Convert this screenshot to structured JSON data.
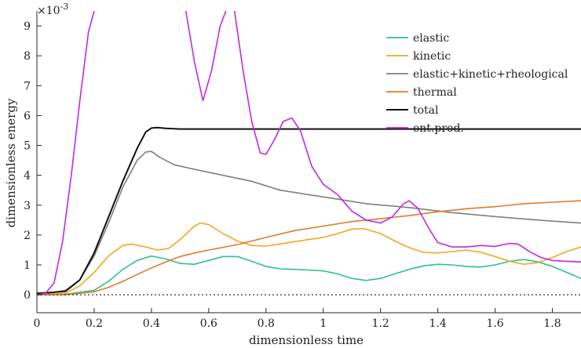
{
  "chart_data": {
    "type": "line",
    "xlabel": "dimensionless time",
    "ylabel": "dimensionless energy",
    "y_multiplier": "×10",
    "y_multiplier_exp": "-3",
    "xlim": [
      0,
      1.9
    ],
    "ylim": [
      -0.6,
      9.5
    ],
    "x_ticks": [
      0,
      0.2,
      0.4,
      0.6,
      0.8,
      1,
      1.2,
      1.4,
      1.6,
      1.8
    ],
    "x_tick_labels": [
      "0",
      "0.2",
      "0.4",
      "0.6",
      "0.8",
      "1",
      "1.2",
      "1.4",
      "1.6",
      "1.8"
    ],
    "y_ticks": [
      0,
      1,
      2,
      3,
      4,
      5,
      6,
      7,
      8,
      9
    ],
    "y_tick_labels": [
      "0",
      "1",
      "2",
      "3",
      "4",
      "5",
      "6",
      "7",
      "8",
      "9"
    ],
    "grid": false,
    "legend_position": "top-right",
    "zero_line": "dotted",
    "series": [
      {
        "name": "elastic",
        "color": "#2ec08f",
        "points": [
          [
            0,
            0
          ],
          [
            0.1,
            0.02
          ],
          [
            0.2,
            0.15
          ],
          [
            0.25,
            0.45
          ],
          [
            0.3,
            0.85
          ],
          [
            0.35,
            1.15
          ],
          [
            0.4,
            1.3
          ],
          [
            0.45,
            1.2
          ],
          [
            0.5,
            1.05
          ],
          [
            0.55,
            1.02
          ],
          [
            0.6,
            1.15
          ],
          [
            0.65,
            1.28
          ],
          [
            0.7,
            1.28
          ],
          [
            0.75,
            1.12
          ],
          [
            0.8,
            0.95
          ],
          [
            0.85,
            0.87
          ],
          [
            0.9,
            0.85
          ],
          [
            0.95,
            0.83
          ],
          [
            1.0,
            0.8
          ],
          [
            1.05,
            0.7
          ],
          [
            1.1,
            0.55
          ],
          [
            1.15,
            0.48
          ],
          [
            1.2,
            0.55
          ],
          [
            1.25,
            0.7
          ],
          [
            1.3,
            0.85
          ],
          [
            1.35,
            0.97
          ],
          [
            1.4,
            1.02
          ],
          [
            1.45,
            1.0
          ],
          [
            1.5,
            0.95
          ],
          [
            1.55,
            0.93
          ],
          [
            1.6,
            1.0
          ],
          [
            1.65,
            1.12
          ],
          [
            1.7,
            1.18
          ],
          [
            1.75,
            1.1
          ],
          [
            1.8,
            0.95
          ],
          [
            1.85,
            0.75
          ],
          [
            1.9,
            0.55
          ]
        ]
      },
      {
        "name": "kinetic",
        "color": "#f5a623",
        "points": [
          [
            0,
            0
          ],
          [
            0.1,
            0.05
          ],
          [
            0.15,
            0.3
          ],
          [
            0.2,
            0.75
          ],
          [
            0.25,
            1.3
          ],
          [
            0.3,
            1.65
          ],
          [
            0.33,
            1.7
          ],
          [
            0.38,
            1.6
          ],
          [
            0.42,
            1.5
          ],
          [
            0.46,
            1.55
          ],
          [
            0.5,
            1.85
          ],
          [
            0.55,
            2.3
          ],
          [
            0.57,
            2.4
          ],
          [
            0.6,
            2.35
          ],
          [
            0.65,
            2.05
          ],
          [
            0.7,
            1.8
          ],
          [
            0.75,
            1.65
          ],
          [
            0.8,
            1.63
          ],
          [
            0.85,
            1.7
          ],
          [
            0.9,
            1.78
          ],
          [
            0.95,
            1.85
          ],
          [
            1.0,
            1.92
          ],
          [
            1.05,
            2.05
          ],
          [
            1.1,
            2.2
          ],
          [
            1.14,
            2.22
          ],
          [
            1.2,
            2.05
          ],
          [
            1.25,
            1.8
          ],
          [
            1.3,
            1.58
          ],
          [
            1.35,
            1.42
          ],
          [
            1.4,
            1.4
          ],
          [
            1.45,
            1.45
          ],
          [
            1.5,
            1.5
          ],
          [
            1.55,
            1.42
          ],
          [
            1.6,
            1.28
          ],
          [
            1.65,
            1.12
          ],
          [
            1.7,
            1.02
          ],
          [
            1.75,
            1.08
          ],
          [
            1.8,
            1.25
          ],
          [
            1.85,
            1.45
          ],
          [
            1.9,
            1.6
          ]
        ]
      },
      {
        "name": "elastic+kinetic+rheological",
        "color": "#7f7f7f",
        "points": [
          [
            0,
            0.05
          ],
          [
            0.05,
            0.07
          ],
          [
            0.1,
            0.15
          ],
          [
            0.15,
            0.5
          ],
          [
            0.2,
            1.3
          ],
          [
            0.25,
            2.4
          ],
          [
            0.3,
            3.6
          ],
          [
            0.35,
            4.5
          ],
          [
            0.38,
            4.78
          ],
          [
            0.4,
            4.8
          ],
          [
            0.43,
            4.6
          ],
          [
            0.48,
            4.35
          ],
          [
            0.55,
            4.2
          ],
          [
            0.65,
            4.0
          ],
          [
            0.75,
            3.8
          ],
          [
            0.85,
            3.5
          ],
          [
            0.95,
            3.35
          ],
          [
            1.05,
            3.2
          ],
          [
            1.15,
            3.05
          ],
          [
            1.3,
            2.92
          ],
          [
            1.45,
            2.75
          ],
          [
            1.6,
            2.62
          ],
          [
            1.75,
            2.5
          ],
          [
            1.9,
            2.4
          ]
        ]
      },
      {
        "name": "thermal",
        "color": "#e07b2a",
        "points": [
          [
            0,
            0
          ],
          [
            0.1,
            0.0
          ],
          [
            0.2,
            0.1
          ],
          [
            0.25,
            0.25
          ],
          [
            0.3,
            0.45
          ],
          [
            0.35,
            0.68
          ],
          [
            0.4,
            0.9
          ],
          [
            0.45,
            1.1
          ],
          [
            0.5,
            1.28
          ],
          [
            0.55,
            1.4
          ],
          [
            0.6,
            1.5
          ],
          [
            0.7,
            1.68
          ],
          [
            0.8,
            1.92
          ],
          [
            0.9,
            2.15
          ],
          [
            1.0,
            2.3
          ],
          [
            1.1,
            2.45
          ],
          [
            1.2,
            2.55
          ],
          [
            1.3,
            2.65
          ],
          [
            1.4,
            2.78
          ],
          [
            1.5,
            2.88
          ],
          [
            1.6,
            2.95
          ],
          [
            1.7,
            3.05
          ],
          [
            1.8,
            3.1
          ],
          [
            1.9,
            3.15
          ]
        ]
      },
      {
        "name": "total",
        "color": "#111111",
        "points": [
          [
            0,
            0.05
          ],
          [
            0.05,
            0.08
          ],
          [
            0.1,
            0.12
          ],
          [
            0.15,
            0.5
          ],
          [
            0.2,
            1.4
          ],
          [
            0.25,
            2.6
          ],
          [
            0.3,
            3.8
          ],
          [
            0.35,
            4.9
          ],
          [
            0.38,
            5.45
          ],
          [
            0.4,
            5.58
          ],
          [
            0.42,
            5.6
          ],
          [
            0.45,
            5.57
          ],
          [
            0.5,
            5.55
          ],
          [
            0.6,
            5.55
          ],
          [
            0.8,
            5.55
          ],
          [
            1.0,
            5.55
          ],
          [
            1.2,
            5.55
          ],
          [
            1.4,
            5.55
          ],
          [
            1.6,
            5.55
          ],
          [
            1.9,
            5.55
          ]
        ]
      },
      {
        "name": "ent.prod.",
        "color": "#c427e8",
        "points": [
          [
            0,
            0
          ],
          [
            0.03,
            0.05
          ],
          [
            0.06,
            0.4
          ],
          [
            0.09,
            1.8
          ],
          [
            0.12,
            4.0
          ],
          [
            0.15,
            6.5
          ],
          [
            0.18,
            8.8
          ],
          [
            0.2,
            9.5
          ],
          [
            0.2,
            null
          ],
          [
            0.52,
            9.5
          ],
          [
            0.55,
            7.8
          ],
          [
            0.58,
            6.5
          ],
          [
            0.61,
            7.5
          ],
          [
            0.64,
            9.0
          ],
          [
            0.66,
            9.5
          ],
          [
            0.66,
            null
          ],
          [
            0.69,
            9.5
          ],
          [
            0.72,
            7.5
          ],
          [
            0.75,
            5.8
          ],
          [
            0.78,
            4.75
          ],
          [
            0.8,
            4.7
          ],
          [
            0.83,
            5.2
          ],
          [
            0.86,
            5.8
          ],
          [
            0.89,
            5.92
          ],
          [
            0.92,
            5.5
          ],
          [
            0.96,
            4.3
          ],
          [
            1.0,
            3.7
          ],
          [
            1.05,
            3.35
          ],
          [
            1.1,
            2.8
          ],
          [
            1.15,
            2.5
          ],
          [
            1.2,
            2.4
          ],
          [
            1.24,
            2.6
          ],
          [
            1.28,
            3.05
          ],
          [
            1.3,
            3.15
          ],
          [
            1.33,
            2.9
          ],
          [
            1.37,
            2.2
          ],
          [
            1.4,
            1.75
          ],
          [
            1.45,
            1.6
          ],
          [
            1.5,
            1.6
          ],
          [
            1.55,
            1.65
          ],
          [
            1.6,
            1.62
          ],
          [
            1.65,
            1.72
          ],
          [
            1.68,
            1.7
          ],
          [
            1.72,
            1.45
          ],
          [
            1.76,
            1.25
          ],
          [
            1.8,
            1.15
          ],
          [
            1.85,
            1.12
          ],
          [
            1.9,
            1.1
          ]
        ]
      }
    ]
  }
}
